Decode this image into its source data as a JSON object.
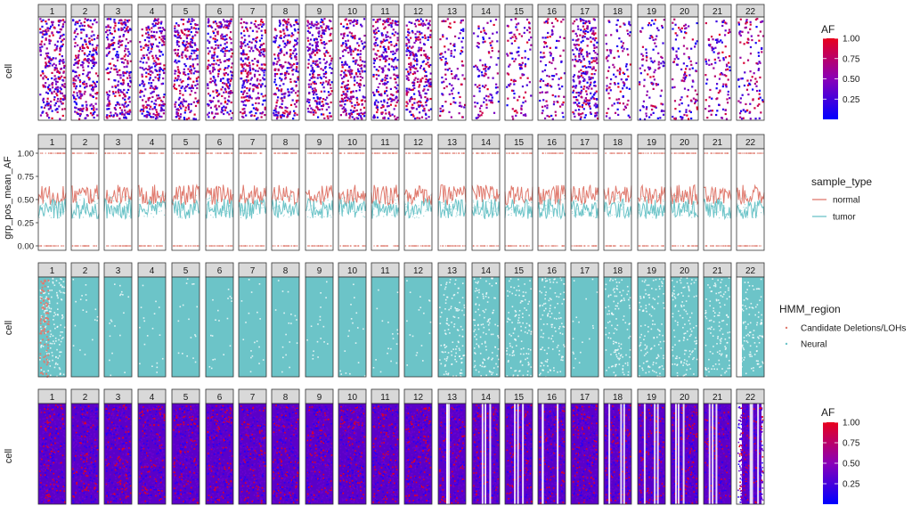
{
  "chart_data": [
    {
      "type": "heatmap",
      "ylabel": "cell",
      "facets": [
        "1",
        "2",
        "3",
        "4",
        "5",
        "6",
        "7",
        "8",
        "9",
        "10",
        "11",
        "12",
        "13",
        "14",
        "15",
        "16",
        "17",
        "18",
        "19",
        "20",
        "21",
        "22"
      ],
      "fill": "AF",
      "color_scale": {
        "title": "AF",
        "range": [
          0,
          1
        ],
        "ticks": [
          "1.00",
          "0.75",
          "0.50",
          "0.25"
        ],
        "tick_values": [
          1.0,
          0.75,
          0.5,
          0.25
        ],
        "low_color": "#0000ff",
        "high_color": "#e8001c"
      }
    },
    {
      "type": "line",
      "ylabel": "grp_pos_mean_AF",
      "facets": [
        "1",
        "2",
        "3",
        "4",
        "5",
        "6",
        "7",
        "8",
        "9",
        "10",
        "11",
        "12",
        "13",
        "14",
        "15",
        "16",
        "17",
        "18",
        "19",
        "20",
        "21",
        "22"
      ],
      "y_ticks": [
        "1.00",
        "0.75",
        "0.50",
        "0.25",
        "0.00"
      ],
      "y_tick_values": [
        1.0,
        0.75,
        0.5,
        0.25,
        0.0
      ],
      "ylim": [
        0,
        1
      ],
      "legend": {
        "title": "sample_type",
        "position": "right",
        "entries": [
          {
            "label": "normal",
            "color": "#e07a6e"
          },
          {
            "label": "tumor",
            "color": "#6cc4c8"
          }
        ]
      },
      "series": [
        {
          "name": "normal",
          "approx_mean": 0.55
        },
        {
          "name": "tumor",
          "approx_mean": 0.4
        }
      ]
    },
    {
      "type": "heatmap",
      "ylabel": "cell",
      "facets": [
        "1",
        "2",
        "3",
        "4",
        "5",
        "6",
        "7",
        "8",
        "9",
        "10",
        "11",
        "12",
        "13",
        "14",
        "15",
        "16",
        "17",
        "18",
        "19",
        "20",
        "21",
        "22"
      ],
      "fill": "HMM_region",
      "legend": {
        "title": "HMM_region",
        "position": "right",
        "entries": [
          {
            "label": "Candidate Deletions/LOHs",
            "color": "#e07a6e"
          },
          {
            "label": "Neural",
            "color": "#6cc4c8"
          }
        ]
      }
    },
    {
      "type": "heatmap",
      "ylabel": "cell",
      "facets": [
        "1",
        "2",
        "3",
        "4",
        "5",
        "6",
        "7",
        "8",
        "9",
        "10",
        "11",
        "12",
        "13",
        "14",
        "15",
        "16",
        "17",
        "18",
        "19",
        "20",
        "21",
        "22"
      ],
      "fill": "AF",
      "color_scale": {
        "title": "AF",
        "range": [
          0,
          1
        ],
        "ticks": [
          "1.00",
          "0.75",
          "0.50",
          "0.25"
        ],
        "tick_values": [
          1.0,
          0.75,
          0.5,
          0.25
        ],
        "low_color": "#0000ff",
        "high_color": "#e8001c"
      }
    }
  ],
  "colors": {
    "panel_border": "#333333",
    "strip_fill": "#d9d9d9",
    "normal": "#e07a6e",
    "tumor": "#6cc4c8",
    "af_low": "#0000ff",
    "af_mid": "#8a00b8",
    "af_high": "#e8001c"
  }
}
